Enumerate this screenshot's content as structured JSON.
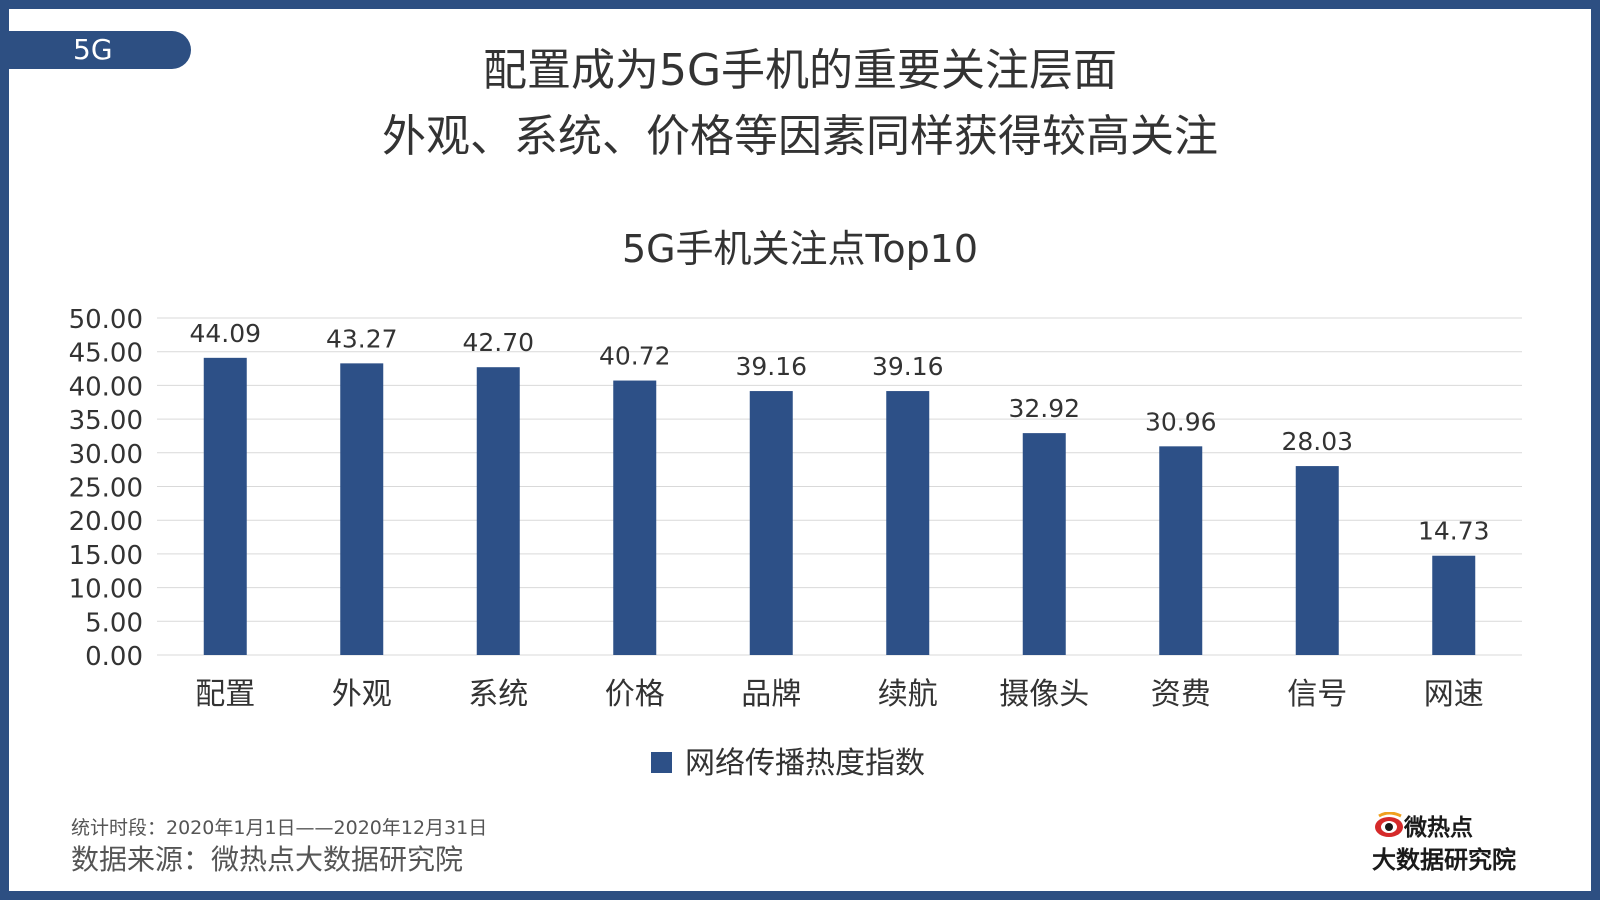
{
  "header": {
    "tag": "5G",
    "title_line1": "配置成为5G手机的重要关注层面",
    "title_line2": "外观、系统、价格等因素同样获得较高关注"
  },
  "colors": {
    "accent": "#2d4f82",
    "bar": "#2d5087",
    "text": "#333333",
    "grid": "#d9d9d9",
    "logo_red": "#d52a2a"
  },
  "chart_data": {
    "type": "bar",
    "title": "5G手机关注点Top10",
    "categories": [
      "配置",
      "外观",
      "系统",
      "价格",
      "品牌",
      "续航",
      "摄像头",
      "资费",
      "信号",
      "网速"
    ],
    "series": [
      {
        "name": "网络传播热度指数",
        "values": [
          44.09,
          43.27,
          42.7,
          40.72,
          39.16,
          39.16,
          32.92,
          30.96,
          28.03,
          14.73
        ]
      }
    ],
    "value_labels": [
      "44.09",
      "43.27",
      "42.70",
      "40.72",
      "39.16",
      "39.16",
      "32.92",
      "30.96",
      "28.03",
      "14.73"
    ],
    "ylim": [
      0,
      50
    ],
    "yticks": [
      "0.00",
      "5.00",
      "10.00",
      "15.00",
      "20.00",
      "25.00",
      "30.00",
      "35.00",
      "40.00",
      "45.00",
      "50.00"
    ],
    "grid": true,
    "legend_position": "bottom"
  },
  "footer": {
    "period": "统计时段：2020年1月1日——2020年12月31日",
    "source": "数据来源：微热点大数据研究院"
  },
  "logo": {
    "name_top": "微热点",
    "name_bottom": "大数据研究院"
  }
}
